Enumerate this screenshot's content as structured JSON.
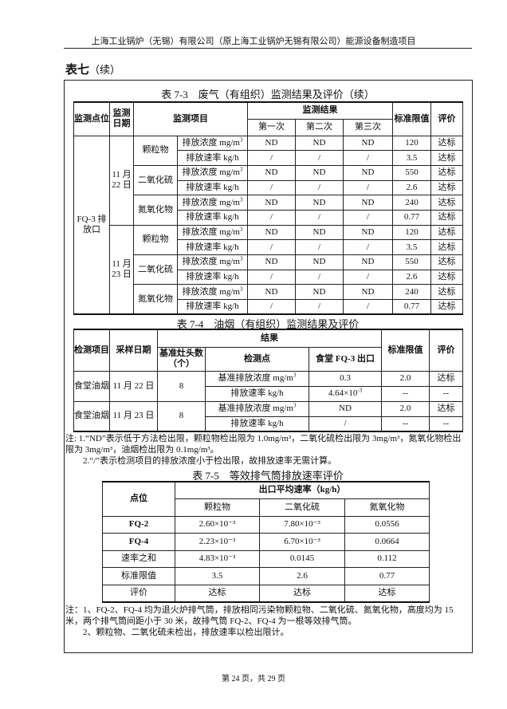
{
  "header": "上海工业锅炉（无锡）有限公司（原上海工业锅炉无锡有限公司）能源设备制造项目",
  "section": {
    "title": "表七",
    "suffix": "（续）"
  },
  "t73": {
    "caption": "表 7-3　废气（有组织）监测结果及评价（续）",
    "h": {
      "point": "监测点位",
      "date": "监测日期",
      "item": "监测项目",
      "result": "监测结果",
      "r1": "第一次",
      "r2": "第二次",
      "r3": "第三次",
      "limit": "标准限值",
      "eval": "评价"
    },
    "point": "FQ-3 排放口",
    "dates": [
      "11 月 22 日",
      "11 月 23 日"
    ],
    "pollutants": [
      "颗粒物",
      "二氧化硫",
      "氮氧化物"
    ],
    "conc": "排放浓度 mg/m",
    "rate": "排放速率 kg/h",
    "rows": [
      [
        "ND",
        "ND",
        "ND",
        "120",
        "达标"
      ],
      [
        "/",
        "/",
        "/",
        "3.5",
        "达标"
      ],
      [
        "ND",
        "ND",
        "ND",
        "550",
        "达标"
      ],
      [
        "/",
        "/",
        "/",
        "2.6",
        "达标"
      ],
      [
        "ND",
        "ND",
        "ND",
        "240",
        "达标"
      ],
      [
        "/",
        "/",
        "/",
        "0.77",
        "达标"
      ],
      [
        "ND",
        "ND",
        "ND",
        "120",
        "达标"
      ],
      [
        "/",
        "/",
        "/",
        "3.5",
        "达标"
      ],
      [
        "ND",
        "ND",
        "ND",
        "550",
        "达标"
      ],
      [
        "/",
        "/",
        "/",
        "2.6",
        "达标"
      ],
      [
        "ND",
        "ND",
        "ND",
        "240",
        "达标"
      ],
      [
        "/",
        "/",
        "/",
        "0.77",
        "达标"
      ]
    ]
  },
  "t74": {
    "caption": "表 7-4　油烟（有组织）监测结果及评价",
    "h": {
      "item": "检测项目",
      "date": "采样日期",
      "result": "结果",
      "heads": "基准灶头数（个）",
      "point": "检测点",
      "outlet": "食堂 FQ-3 出口",
      "limit": "标准限值",
      "eval": "评价"
    },
    "groups": [
      {
        "item": "食堂油烟",
        "date": "11 月 22 日",
        "heads": "8",
        "rows": [
          [
            "基准排放浓度 mg/m",
            "0.3",
            "2.0",
            "达标"
          ],
          [
            "排放速率 kg/h",
            "4.64×10",
            "--",
            "--"
          ]
        ]
      },
      {
        "item": "食堂油烟",
        "date": "11 月 23 日",
        "heads": "8",
        "rows": [
          [
            "基准排放浓度 mg/m",
            "ND",
            "2.0",
            "达标"
          ],
          [
            "排放速率 kg/h",
            "/",
            "--",
            "--"
          ]
        ]
      }
    ]
  },
  "notes1": [
    "注: 1.“ND”表示低于方法检出限，颗粒物检出限为 1.0mg/m³，二氧化硫检出限为 3mg/m³，氮氧化物检出限为 3mg/m³，油烟检出限为 0.1mg/m³。",
    "2.“/”表示检测项目的排放浓度小于检出限，故排放速率无需计算。"
  ],
  "t75": {
    "caption": "表 7-5　等效排气筒排放速率评价",
    "h": {
      "point": "点位",
      "rate": "出口平均速率（kg/h）",
      "c1": "颗粒物",
      "c2": "二氧化硫",
      "c3": "氮氧化物"
    },
    "rows": [
      [
        "FQ-2",
        "2.60×10⁻³",
        "7.80×10⁻³",
        "0.0556"
      ],
      [
        "FQ-4",
        "2.23×10⁻³",
        "6.70×10⁻³",
        "0.0664"
      ],
      [
        "速率之和",
        "4.83×10⁻³",
        "0.0145",
        "0.112"
      ],
      [
        "标准限值",
        "3.5",
        "2.6",
        "0.77"
      ],
      [
        "评价",
        "达标",
        "达标",
        "达标"
      ]
    ]
  },
  "notes2": [
    "注：1、FQ-2、FQ-4 均为退火炉排气筒，排放相同污染物颗粒物、二氧化硫、氮氧化物，高度均为 15 米，两个排气筒间距小于 30 米，故排气筒 FQ-2、FQ-4 为一根等效排气筒。",
    "2、颗粒物、二氧化硫未检出，排放速率以检出限计。"
  ],
  "footer": "第 24 页，共 29 页"
}
